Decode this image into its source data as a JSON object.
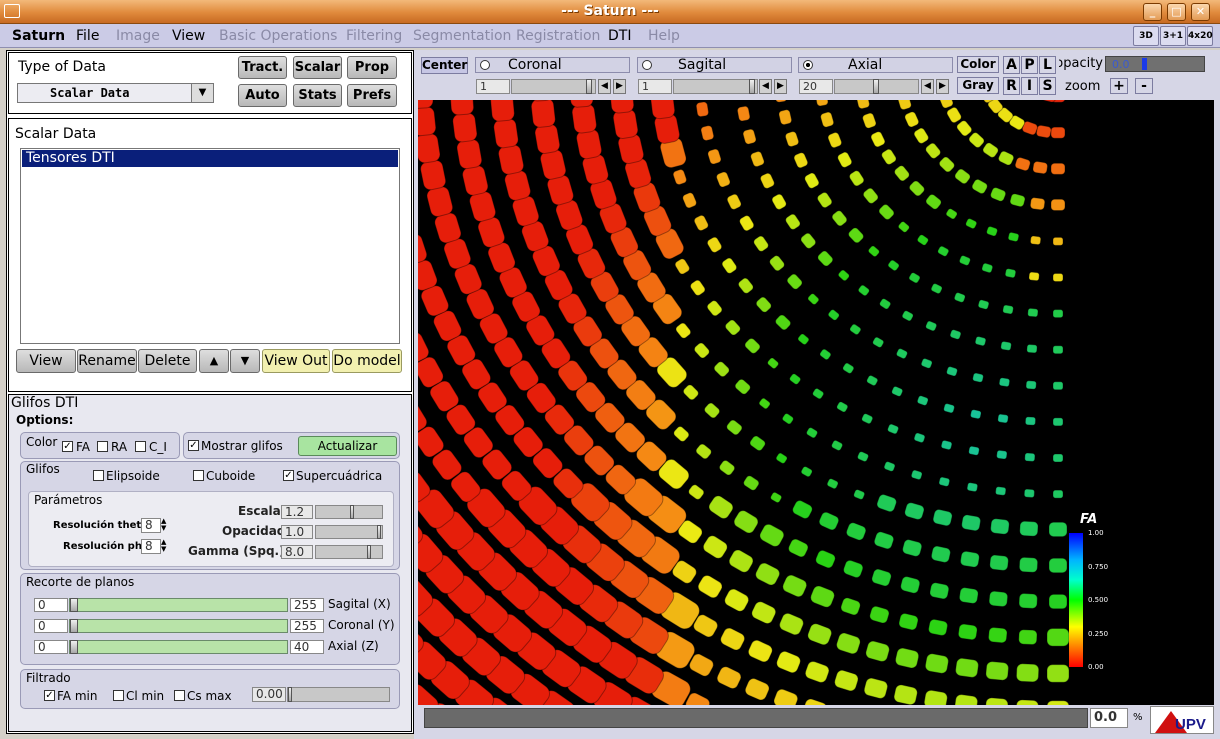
{
  "window": {
    "title": "--- Saturn ---"
  },
  "menu": [
    "Saturn",
    "File",
    "Image",
    "View",
    "Basic Operations",
    "Filtering",
    "Segmentation",
    "Registration",
    "DTI",
    "Help"
  ],
  "toolbar": {
    "btn3d": "3D",
    "btn3p1": "3+1",
    "btn4x20": "4x20"
  },
  "type_panel": {
    "title": "Type of Data",
    "select_value": "Scalar Data",
    "tract": "Tract.",
    "scalar": "Scalar",
    "prop": "Prop",
    "auto": "Auto",
    "stats": "Stats",
    "prefs": "Prefs"
  },
  "scalar_panel": {
    "title": "Scalar Data",
    "items": [
      "Tensores DTI"
    ],
    "view": "View",
    "rename": "Rename",
    "delete": "Delete",
    "up": "▲",
    "down": "▼",
    "view_out": "View Out",
    "do_model": "Do model"
  },
  "glifos": {
    "title": "Glifos DTI",
    "options": "Options:",
    "color_label": "Color",
    "fa": "FA",
    "ra": "RA",
    "ci": "C_I",
    "mostrar": "Mostrar glifos",
    "actualizar": "Actualizar",
    "glifos_label": "Glifos",
    "elipsoide": "Elipsoide",
    "cuboide": "Cuboide",
    "supercuadrica": "Supercuádrica",
    "parametros": "Parámetros",
    "res_theta": "Resolución theta",
    "res_theta_val": "8",
    "res_phi": "Resolución phi",
    "res_phi_val": "8",
    "escala": "Escala",
    "escala_val": "1.2",
    "opacidad": "Opacidad",
    "opacidad_val": "1.0",
    "gamma": "Gamma (Spq.)",
    "gamma_val": "8.0",
    "escala_level": 0.55,
    "opacidad_level": 0.98,
    "gamma_level": 0.82
  },
  "recorte": {
    "title": "Recorte de planos",
    "rows": [
      {
        "min": "0",
        "max": "255",
        "label": "Sagital (X)"
      },
      {
        "min": "0",
        "max": "255",
        "label": "Coronal (Y)"
      },
      {
        "min": "0",
        "max": "40",
        "label": "Axial (Z)"
      }
    ]
  },
  "filtrado": {
    "title": "Filtrado",
    "fa_min": "FA min",
    "cl_min": "Cl min",
    "cs_max": "Cs max",
    "value": "0.00"
  },
  "viewer_controls": {
    "center": "Center",
    "coronal": "Coronal",
    "sagital": "Sagital",
    "axial": "Axial",
    "coronal_val": "1",
    "sagital_val": "1",
    "axial_val": "20",
    "color": "Color",
    "gray": "Gray",
    "a": "A",
    "p": "P",
    "l": "L",
    "r": "R",
    "i": "I",
    "s": "S",
    "opacity": "opacity",
    "opacity_val": "0.0",
    "zoom": "zoom",
    "plus": "+",
    "minus": "-"
  },
  "colorbar": {
    "title": "FA",
    "ticks": [
      "1.00",
      "0.750",
      "0.500",
      "0.250",
      "0.00"
    ]
  },
  "statusbar": {
    "value": "0.0",
    "unit": "%"
  },
  "logo": {
    "text": "UPV"
  }
}
